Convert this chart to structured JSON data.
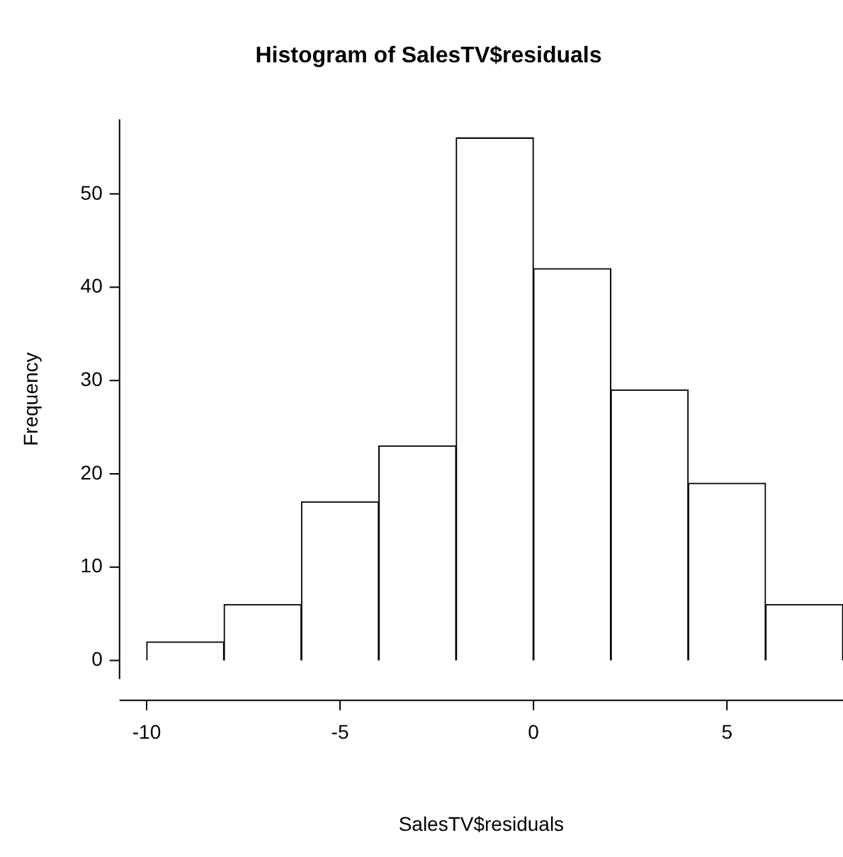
{
  "chart_data": {
    "type": "histogram",
    "title": "Histogram of SalesTV$residuals",
    "xlabel": "SalesTV$residuals",
    "ylabel": "Frequency",
    "bins": [
      -10,
      -8,
      -6,
      -4,
      -2,
      0,
      2,
      4,
      6,
      8
    ],
    "values": [
      2,
      6,
      17,
      23,
      56,
      42,
      29,
      19,
      6
    ],
    "color": "#ffffff",
    "xlim": [
      -10.7,
      8
    ],
    "xticks": [
      -10,
      -5,
      0,
      5
    ],
    "ylim": [
      -2,
      58
    ],
    "yticks": [
      0,
      10,
      20,
      30,
      40,
      50
    ],
    "grid": false,
    "legend": false
  }
}
